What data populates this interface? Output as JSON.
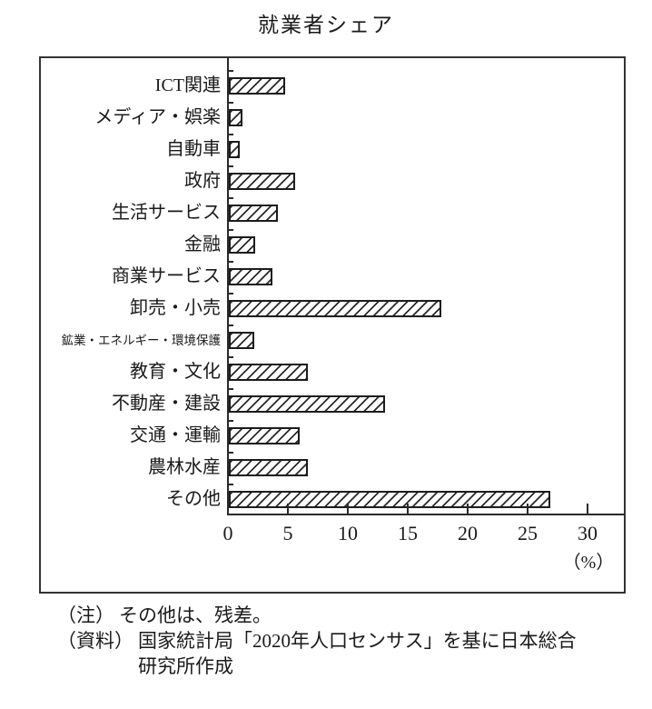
{
  "page": {
    "title": "就業者シェア"
  },
  "chart_data": {
    "type": "bar",
    "orientation": "horizontal",
    "title": "就業者シェア",
    "categories": [
      "ICT関連",
      "メディア・娯楽",
      "自動車",
      "政府",
      "生活サービス",
      "金融",
      "商業サービス",
      "卸売・小売",
      "鉱業・エネルギー・環境保護",
      "教育・文化",
      "不動産・建設",
      "交通・運輸",
      "農林水産",
      "その他"
    ],
    "values": [
      4.7,
      1.1,
      0.9,
      5.5,
      4.1,
      2.2,
      3.6,
      17.7,
      2.1,
      6.6,
      13.0,
      5.9,
      6.6,
      26.8
    ],
    "unit": "%",
    "x_ticks": [
      0,
      5,
      10,
      15,
      20,
      25,
      30
    ],
    "xlim": [
      0,
      33
    ],
    "xlabel": "（%）",
    "grid": false,
    "bar_style": "white fill with black diagonal hatch ///",
    "ink_color": "#1a1a1a"
  },
  "notes": [
    {
      "prefix": "（注）",
      "lines": [
        "その他は、残差。"
      ]
    },
    {
      "prefix": "（資料）",
      "lines": [
        "国家統計局「2020年人口センサス」を基に日本総合",
        "研究所作成"
      ]
    }
  ]
}
